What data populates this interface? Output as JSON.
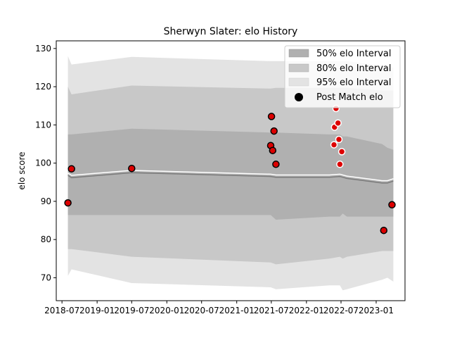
{
  "chart_data": {
    "type": "area",
    "title": "Sherwyn Slater: elo History",
    "xlabel": "",
    "ylabel": "elo score",
    "ylim": [
      64,
      132
    ],
    "xlim": [
      "2018-06-01",
      "2023-06-01"
    ],
    "grid": false,
    "legend_position": "top-right",
    "y_ticks": [
      70,
      80,
      90,
      100,
      110,
      120,
      130
    ],
    "x_ticks": [
      {
        "date": "2018-07-01",
        "label": "2018-07"
      },
      {
        "date": "2019-01-01",
        "label": "2019-01"
      },
      {
        "date": "2019-07-01",
        "label": "2019-07"
      },
      {
        "date": "2020-01-01",
        "label": "2020-01"
      },
      {
        "date": "2020-07-01",
        "label": "2020-07"
      },
      {
        "date": "2021-01-01",
        "label": "2021-01"
      },
      {
        "date": "2021-07-01",
        "label": "2021-07"
      },
      {
        "date": "2022-01-01",
        "label": "2022-01"
      },
      {
        "date": "2022-07-01",
        "label": "2022-07"
      },
      {
        "date": "2023-01-01",
        "label": "2023-01"
      }
    ],
    "legend": [
      {
        "label": "50% elo Interval",
        "color": "#b0b0b0"
      },
      {
        "label": "80% elo Interval",
        "color": "#c8c8c8"
      },
      {
        "label": "95% elo Interval",
        "color": "#e3e3e3"
      },
      {
        "label": "Post Match elo",
        "color": "#000000"
      }
    ],
    "bands": {
      "x": [
        "2018-08-01",
        "2018-08-20",
        "2019-07-01",
        "2021-06-28",
        "2021-07-25",
        "2022-05-01",
        "2022-06-25",
        "2022-07-10",
        "2022-08-01",
        "2023-02-01",
        "2023-03-01",
        "2023-04-01"
      ],
      "mean": [
        96.8,
        96.2,
        97.5,
        96.5,
        96.3,
        96.3,
        96.5,
        96.3,
        96.0,
        94.8,
        94.8,
        95.3
      ],
      "p50_low": [
        86.4,
        86.4,
        86.4,
        86.4,
        85.2,
        86.0,
        86.0,
        86.8,
        86.0,
        86.0,
        86.0,
        86.0
      ],
      "p50_high": [
        107.5,
        107.5,
        109.0,
        108.0,
        108.0,
        107.5,
        107.5,
        107.0,
        107.0,
        105.0,
        104.0,
        103.5
      ],
      "p80_low": [
        77.5,
        77.5,
        75.5,
        74.0,
        73.5,
        75.0,
        75.5,
        75.0,
        75.5,
        77.0,
        77.0,
        77.0
      ],
      "p80_high": [
        120.0,
        118.0,
        120.3,
        119.5,
        119.7,
        119.7,
        119.7,
        119.7,
        119.7,
        119.0,
        119.0,
        119.0
      ],
      "p95_low": [
        70.5,
        72.2,
        68.6,
        67.5,
        67.0,
        68.0,
        68.0,
        66.7,
        67.0,
        69.5,
        70.0,
        69.0
      ],
      "p95_high": [
        128.0,
        125.8,
        127.8,
        126.7,
        126.7,
        126.7,
        126.7,
        126.7,
        126.7,
        125.5,
        125.0,
        125.0
      ]
    },
    "post_match": [
      {
        "date": "2018-08-01",
        "elo": 89.6
      },
      {
        "date": "2018-08-20",
        "elo": 98.5
      },
      {
        "date": "2019-07-01",
        "elo": 98.6
      },
      {
        "date": "2021-06-28",
        "elo": 104.6
      },
      {
        "date": "2021-07-02",
        "elo": 112.2
      },
      {
        "date": "2021-07-08",
        "elo": 103.3
      },
      {
        "date": "2021-07-15",
        "elo": 108.4
      },
      {
        "date": "2021-07-25",
        "elo": 99.7
      },
      {
        "date": "2022-05-25",
        "elo": 104.8
      },
      {
        "date": "2022-05-28",
        "elo": 109.4
      },
      {
        "date": "2022-06-05",
        "elo": 114.3
      },
      {
        "date": "2022-06-15",
        "elo": 110.5
      },
      {
        "date": "2022-06-20",
        "elo": 106.2
      },
      {
        "date": "2022-06-25",
        "elo": 99.7
      },
      {
        "date": "2022-07-05",
        "elo": 103.0
      },
      {
        "date": "2023-02-10",
        "elo": 82.4
      },
      {
        "date": "2023-03-25",
        "elo": 89.1
      }
    ]
  }
}
